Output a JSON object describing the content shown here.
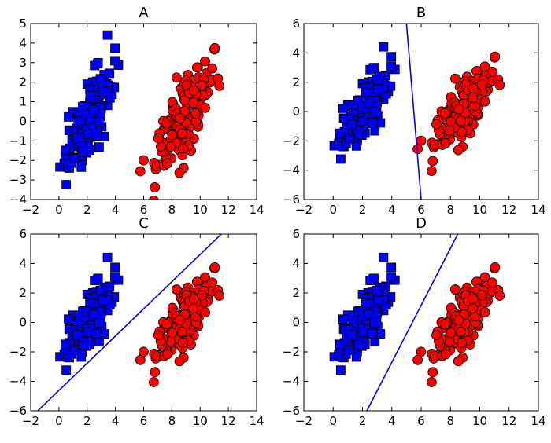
{
  "chart_data": [
    {
      "type": "scatter",
      "title": "A",
      "xlabel": "",
      "ylabel": "",
      "xlim": [
        -2,
        14
      ],
      "ylim": [
        -4,
        5
      ],
      "xticks": [
        -2,
        0,
        2,
        4,
        6,
        8,
        10,
        12,
        14
      ],
      "yticks": [
        -4,
        -3,
        -2,
        -1,
        0,
        1,
        2,
        3,
        4,
        5
      ],
      "grid": false,
      "series": [
        {
          "marker": "square",
          "color": "#0000ff",
          "cluster": {
            "center": [
              2.0,
              0.0
            ],
            "spread": [
              0.85,
              1.45
            ],
            "correlation": 0.75,
            "count": 150
          }
        },
        {
          "marker": "circle",
          "color": "#ff0000",
          "cluster": {
            "center": [
              8.9,
              0.3
            ],
            "spread": [
              1.05,
              1.45
            ],
            "correlation": 0.75,
            "count": 150
          }
        }
      ]
    },
    {
      "type": "scatter",
      "title": "B",
      "xlabel": "",
      "ylabel": "",
      "xlim": [
        -2,
        14
      ],
      "ylim": [
        -6,
        6
      ],
      "xticks": [
        -2,
        0,
        2,
        4,
        6,
        8,
        10,
        12,
        14
      ],
      "yticks": [
        -6,
        -4,
        -2,
        0,
        2,
        4,
        6
      ],
      "grid": false,
      "series": [
        {
          "marker": "square",
          "color": "#0000ff",
          "cluster": {
            "center": [
              2.0,
              0.0
            ],
            "spread": [
              0.85,
              1.45
            ],
            "correlation": 0.75,
            "count": 150
          }
        },
        {
          "marker": "circle",
          "color": "#ff0000",
          "cluster": {
            "center": [
              8.9,
              0.3
            ],
            "spread": [
              1.05,
              1.45
            ],
            "correlation": 0.75,
            "count": 150
          }
        }
      ],
      "line": {
        "points": [
          [
            5.0,
            6.0
          ],
          [
            6.0,
            -6.0
          ]
        ],
        "color": "#0000ff"
      }
    },
    {
      "type": "scatter",
      "title": "C",
      "xlabel": "",
      "ylabel": "",
      "xlim": [
        -2,
        14
      ],
      "ylim": [
        -6,
        6
      ],
      "xticks": [
        -2,
        0,
        2,
        4,
        6,
        8,
        10,
        12,
        14
      ],
      "yticks": [
        -6,
        -4,
        -2,
        0,
        2,
        4,
        6
      ],
      "grid": false,
      "series": [
        {
          "marker": "square",
          "color": "#0000ff",
          "cluster": {
            "center": [
              2.0,
              0.0
            ],
            "spread": [
              0.85,
              1.45
            ],
            "correlation": 0.75,
            "count": 150
          }
        },
        {
          "marker": "circle",
          "color": "#ff0000",
          "cluster": {
            "center": [
              8.9,
              0.3
            ],
            "spread": [
              1.05,
              1.45
            ],
            "correlation": 0.75,
            "count": 150
          }
        }
      ],
      "line": {
        "points": [
          [
            -1.5,
            -6.0
          ],
          [
            11.5,
            6.0
          ]
        ],
        "color": "#0000ff"
      }
    },
    {
      "type": "scatter",
      "title": "D",
      "xlabel": "",
      "ylabel": "",
      "xlim": [
        -2,
        14
      ],
      "ylim": [
        -6,
        6
      ],
      "xticks": [
        -2,
        0,
        2,
        4,
        6,
        8,
        10,
        12,
        14
      ],
      "yticks": [
        -6,
        -4,
        -2,
        0,
        2,
        4,
        6
      ],
      "grid": false,
      "series": [
        {
          "marker": "square",
          "color": "#0000ff",
          "cluster": {
            "center": [
              2.0,
              0.0
            ],
            "spread": [
              0.85,
              1.45
            ],
            "correlation": 0.75,
            "count": 150
          }
        },
        {
          "marker": "circle",
          "color": "#ff0000",
          "cluster": {
            "center": [
              8.9,
              0.3
            ],
            "spread": [
              1.05,
              1.45
            ],
            "correlation": 0.75,
            "count": 150
          }
        }
      ],
      "line": {
        "points": [
          [
            2.3,
            -6.0
          ],
          [
            8.5,
            6.0
          ]
        ],
        "color": "#0000ff"
      }
    }
  ]
}
